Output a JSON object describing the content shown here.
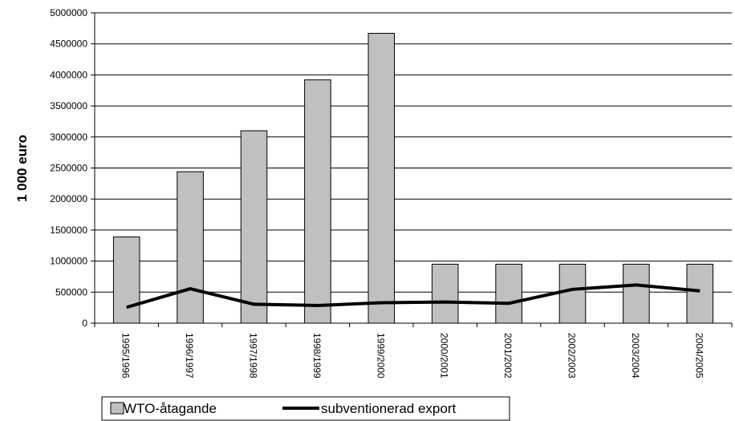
{
  "chart_data": {
    "type": "bar",
    "categories": [
      "1995/1996",
      "1996/1997",
      "1997/1998",
      "1998/1999",
      "1999/2000",
      "2000/2001",
      "2001/2002",
      "2002/2003",
      "2003/2004",
      "2004/2005"
    ],
    "series": [
      {
        "name": "WTO-åtagande",
        "kind": "bar",
        "color": "#c0c0c0",
        "values": [
          1390000,
          2440000,
          3100000,
          3920000,
          4670000,
          950000,
          950000,
          950000,
          950000,
          950000
        ]
      },
      {
        "name": "subventionerad export",
        "kind": "line",
        "color": "#000000",
        "values": [
          255000,
          555000,
          305000,
          285000,
          330000,
          340000,
          320000,
          545000,
          615000,
          520000
        ]
      }
    ],
    "ylabel": "1 000 euro",
    "ylim": [
      0,
      5000000
    ],
    "yticks": [
      "0",
      "500000",
      "1000000",
      "1500000",
      "2000000",
      "2500000",
      "3000000",
      "3500000",
      "4000000",
      "4500000",
      "5000000"
    ],
    "legend_position": "bottom"
  }
}
